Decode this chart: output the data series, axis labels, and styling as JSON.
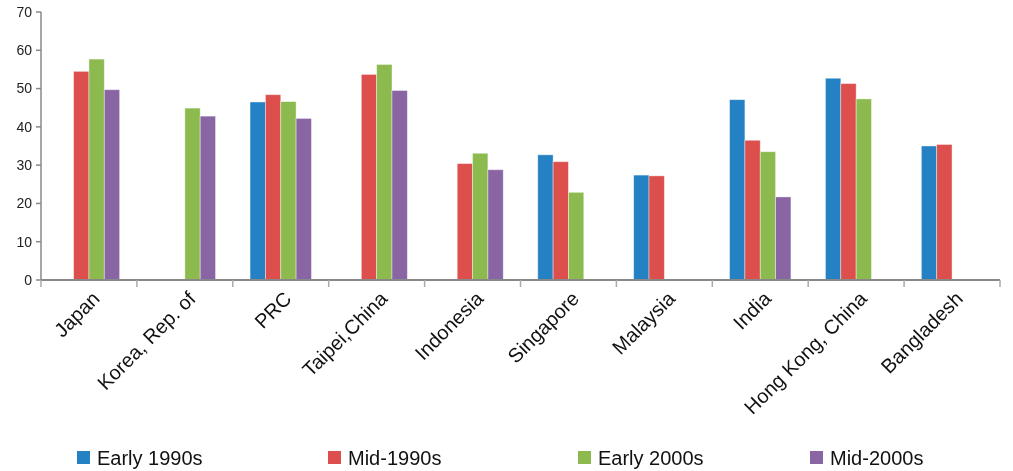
{
  "chart_data": {
    "type": "bar",
    "categories": [
      "Japan",
      "Korea, Rep. of",
      "PRC",
      "Taipei,China",
      "Indonesia",
      "Singapore",
      "Malaysia",
      "India",
      "Hong Kong, China",
      "Bangladesh"
    ],
    "series": [
      {
        "name": "Early 1990s",
        "color": "#2481c3",
        "values": [
          null,
          null,
          46.5,
          null,
          null,
          32.7,
          27.4,
          47.1,
          52.7,
          35.0
        ]
      },
      {
        "name": "Mid-1990s",
        "color": "#dd4f4c",
        "values": [
          54.5,
          null,
          48.4,
          53.7,
          30.4,
          30.9,
          27.2,
          36.5,
          51.3,
          35.4
        ]
      },
      {
        "name": "Early 2000s",
        "color": "#8dba4f",
        "values": [
          57.7,
          44.9,
          46.6,
          56.3,
          33.1,
          22.9,
          null,
          33.5,
          47.3,
          null
        ]
      },
      {
        "name": "Mid-2000s",
        "color": "#8a65a4",
        "values": [
          49.7,
          42.8,
          42.2,
          49.5,
          28.8,
          null,
          null,
          21.7,
          null,
          null
        ]
      }
    ],
    "ylim": [
      0,
      70
    ],
    "yticks": [
      0,
      10,
      20,
      30,
      40,
      50,
      60,
      70
    ],
    "grid": false,
    "legend": "bottom"
  }
}
